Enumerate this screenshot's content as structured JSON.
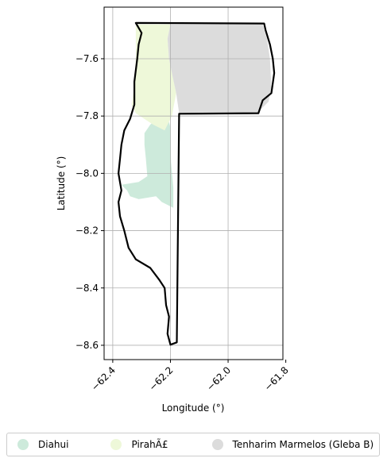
{
  "chart_data": {
    "type": "map",
    "xlabel": "Longitude (°)",
    "ylabel": "Latitude (°)",
    "xlim": [
      -62.43,
      -61.81
    ],
    "ylim": [
      -8.65,
      -7.42
    ],
    "xticks": [
      -62.4,
      -62.2,
      -62.0,
      -61.8
    ],
    "xtick_labels": [
      "−62.4",
      "−62.2",
      "−62.0",
      "−61.8"
    ],
    "yticks": [
      -7.6,
      -7.8,
      -8.0,
      -8.2,
      -8.4,
      -8.6
    ],
    "ytick_labels": [
      "−7.6",
      "−7.8",
      "−8.0",
      "−8.2",
      "−8.4",
      "−8.6"
    ],
    "grid": true,
    "legend_position": "bottom",
    "regions": [
      {
        "name": "Diahui",
        "color": "#cdeadb",
        "polygon": [
          [
            -62.213,
            -7.79
          ],
          [
            -62.2,
            -7.84
          ],
          [
            -62.198,
            -7.96
          ],
          [
            -62.19,
            -8.05
          ],
          [
            -62.19,
            -8.12
          ],
          [
            -62.23,
            -8.1
          ],
          [
            -62.25,
            -8.08
          ],
          [
            -62.31,
            -8.09
          ],
          [
            -62.34,
            -8.08
          ],
          [
            -62.35,
            -8.06
          ],
          [
            -62.37,
            -8.04
          ],
          [
            -62.31,
            -8.03
          ],
          [
            -62.28,
            -8.01
          ],
          [
            -62.285,
            -7.95
          ],
          [
            -62.29,
            -7.9
          ],
          [
            -62.29,
            -7.86
          ],
          [
            -62.27,
            -7.83
          ],
          [
            -62.235,
            -7.8
          ]
        ]
      },
      {
        "name": "PirahÃ£",
        "color": "#eef8d9",
        "polygon": [
          [
            -62.32,
            -7.48
          ],
          [
            -62.2,
            -7.48
          ],
          [
            -62.21,
            -7.53
          ],
          [
            -62.205,
            -7.6
          ],
          [
            -62.195,
            -7.65
          ],
          [
            -62.18,
            -7.72
          ],
          [
            -62.195,
            -7.8
          ],
          [
            -62.22,
            -7.85
          ],
          [
            -62.26,
            -7.83
          ],
          [
            -62.32,
            -7.79
          ],
          [
            -62.335,
            -7.76
          ],
          [
            -62.325,
            -7.7
          ],
          [
            -62.32,
            -7.6
          ],
          [
            -62.32,
            -7.55
          ]
        ]
      },
      {
        "name": "Tenharim Marmelos (Gleba B)",
        "color": "#dcdcdc",
        "polygon": [
          [
            -62.2,
            -7.48
          ],
          [
            -61.88,
            -7.48
          ],
          [
            -61.865,
            -7.53
          ],
          [
            -61.855,
            -7.6
          ],
          [
            -61.85,
            -7.7
          ],
          [
            -61.86,
            -7.75
          ],
          [
            -61.9,
            -7.79
          ],
          [
            -62.17,
            -7.79
          ],
          [
            -62.18,
            -7.72
          ],
          [
            -62.195,
            -7.65
          ],
          [
            -62.205,
            -7.6
          ],
          [
            -62.21,
            -7.53
          ]
        ]
      }
    ],
    "outline": [
      [
        -62.32,
        -7.475
      ],
      [
        -61.875,
        -7.477
      ],
      [
        -61.87,
        -7.5
      ],
      [
        -61.855,
        -7.55
      ],
      [
        -61.845,
        -7.6
      ],
      [
        -61.84,
        -7.65
      ],
      [
        -61.85,
        -7.72
      ],
      [
        -61.88,
        -7.745
      ],
      [
        -61.895,
        -7.79
      ],
      [
        -62.17,
        -7.792
      ],
      [
        -62.178,
        -8.59
      ],
      [
        -62.2,
        -8.598
      ],
      [
        -62.21,
        -8.56
      ],
      [
        -62.205,
        -8.5
      ],
      [
        -62.215,
        -8.46
      ],
      [
        -62.22,
        -8.4
      ],
      [
        -62.24,
        -8.37
      ],
      [
        -62.27,
        -8.33
      ],
      [
        -62.32,
        -8.3
      ],
      [
        -62.345,
        -8.26
      ],
      [
        -62.36,
        -8.2
      ],
      [
        -62.375,
        -8.15
      ],
      [
        -62.38,
        -8.1
      ],
      [
        -62.37,
        -8.06
      ],
      [
        -62.38,
        -8.0
      ],
      [
        -62.375,
        -7.95
      ],
      [
        -62.37,
        -7.9
      ],
      [
        -62.36,
        -7.85
      ],
      [
        -62.34,
        -7.81
      ],
      [
        -62.325,
        -7.76
      ],
      [
        -62.325,
        -7.68
      ],
      [
        -62.315,
        -7.6
      ],
      [
        -62.31,
        -7.55
      ],
      [
        -62.3,
        -7.51
      ]
    ]
  },
  "legend": {
    "items": [
      {
        "label": "Diahui",
        "color": "#cdeadb"
      },
      {
        "label": "PirahÃ£",
        "color": "#eef8d9"
      },
      {
        "label": "Tenharim Marmelos (Gleba B)",
        "color": "#dcdcdc"
      }
    ]
  }
}
